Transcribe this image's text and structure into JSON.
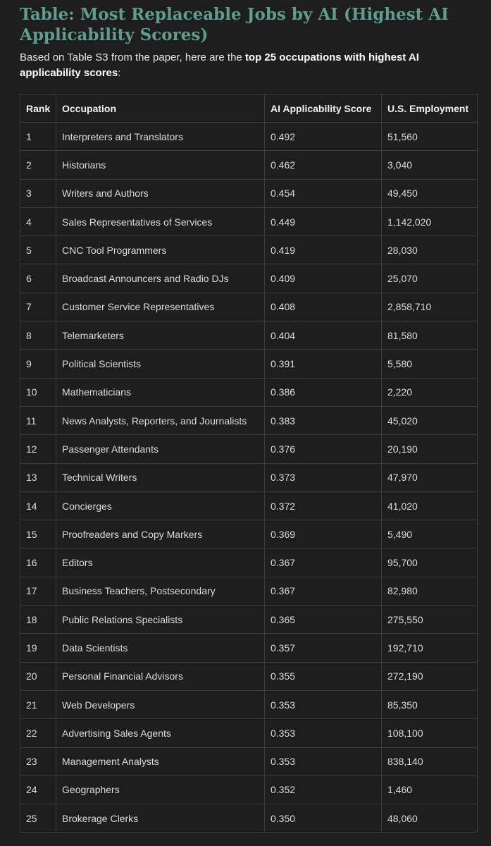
{
  "title": "Table: Most Replaceable Jobs by AI (Highest AI Applicability Scores)",
  "intro": {
    "prefix": "Based on Table S3 from the paper, here are the ",
    "bold": "top 25 occupations with highest AI applicability scores",
    "suffix": ":"
  },
  "table": {
    "headers": [
      "Rank",
      "Occupation",
      "AI Applicability Score",
      "U.S. Employment"
    ],
    "rows": [
      [
        "1",
        "Interpreters and Translators",
        "0.492",
        "51,560"
      ],
      [
        "2",
        "Historians",
        "0.462",
        "3,040"
      ],
      [
        "3",
        "Writers and Authors",
        "0.454",
        "49,450"
      ],
      [
        "4",
        "Sales Representatives of Services",
        "0.449",
        "1,142,020"
      ],
      [
        "5",
        "CNC Tool Programmers",
        "0.419",
        "28,030"
      ],
      [
        "6",
        "Broadcast Announcers and Radio DJs",
        "0.409",
        "25,070"
      ],
      [
        "7",
        "Customer Service Representatives",
        "0.408",
        "2,858,710"
      ],
      [
        "8",
        "Telemarketers",
        "0.404",
        "81,580"
      ],
      [
        "9",
        "Political Scientists",
        "0.391",
        "5,580"
      ],
      [
        "10",
        "Mathematicians",
        "0.386",
        "2,220"
      ],
      [
        "11",
        "News Analysts, Reporters, and Journalists",
        "0.383",
        "45,020"
      ],
      [
        "12",
        "Passenger Attendants",
        "0.376",
        "20,190"
      ],
      [
        "13",
        "Technical Writers",
        "0.373",
        "47,970"
      ],
      [
        "14",
        "Concierges",
        "0.372",
        "41,020"
      ],
      [
        "15",
        "Proofreaders and Copy Markers",
        "0.369",
        "5,490"
      ],
      [
        "16",
        "Editors",
        "0.367",
        "95,700"
      ],
      [
        "17",
        "Business Teachers, Postsecondary",
        "0.367",
        "82,980"
      ],
      [
        "18",
        "Public Relations Specialists",
        "0.365",
        "275,550"
      ],
      [
        "19",
        "Data Scientists",
        "0.357",
        "192,710"
      ],
      [
        "20",
        "Personal Financial Advisors",
        "0.355",
        "272,190"
      ],
      [
        "21",
        "Web Developers",
        "0.353",
        "85,350"
      ],
      [
        "22",
        "Advertising Sales Agents",
        "0.353",
        "108,100"
      ],
      [
        "23",
        "Management Analysts",
        "0.353",
        "838,140"
      ],
      [
        "24",
        "Geographers",
        "0.352",
        "1,460"
      ],
      [
        "25",
        "Brokerage Clerks",
        "0.350",
        "48,060"
      ]
    ]
  }
}
